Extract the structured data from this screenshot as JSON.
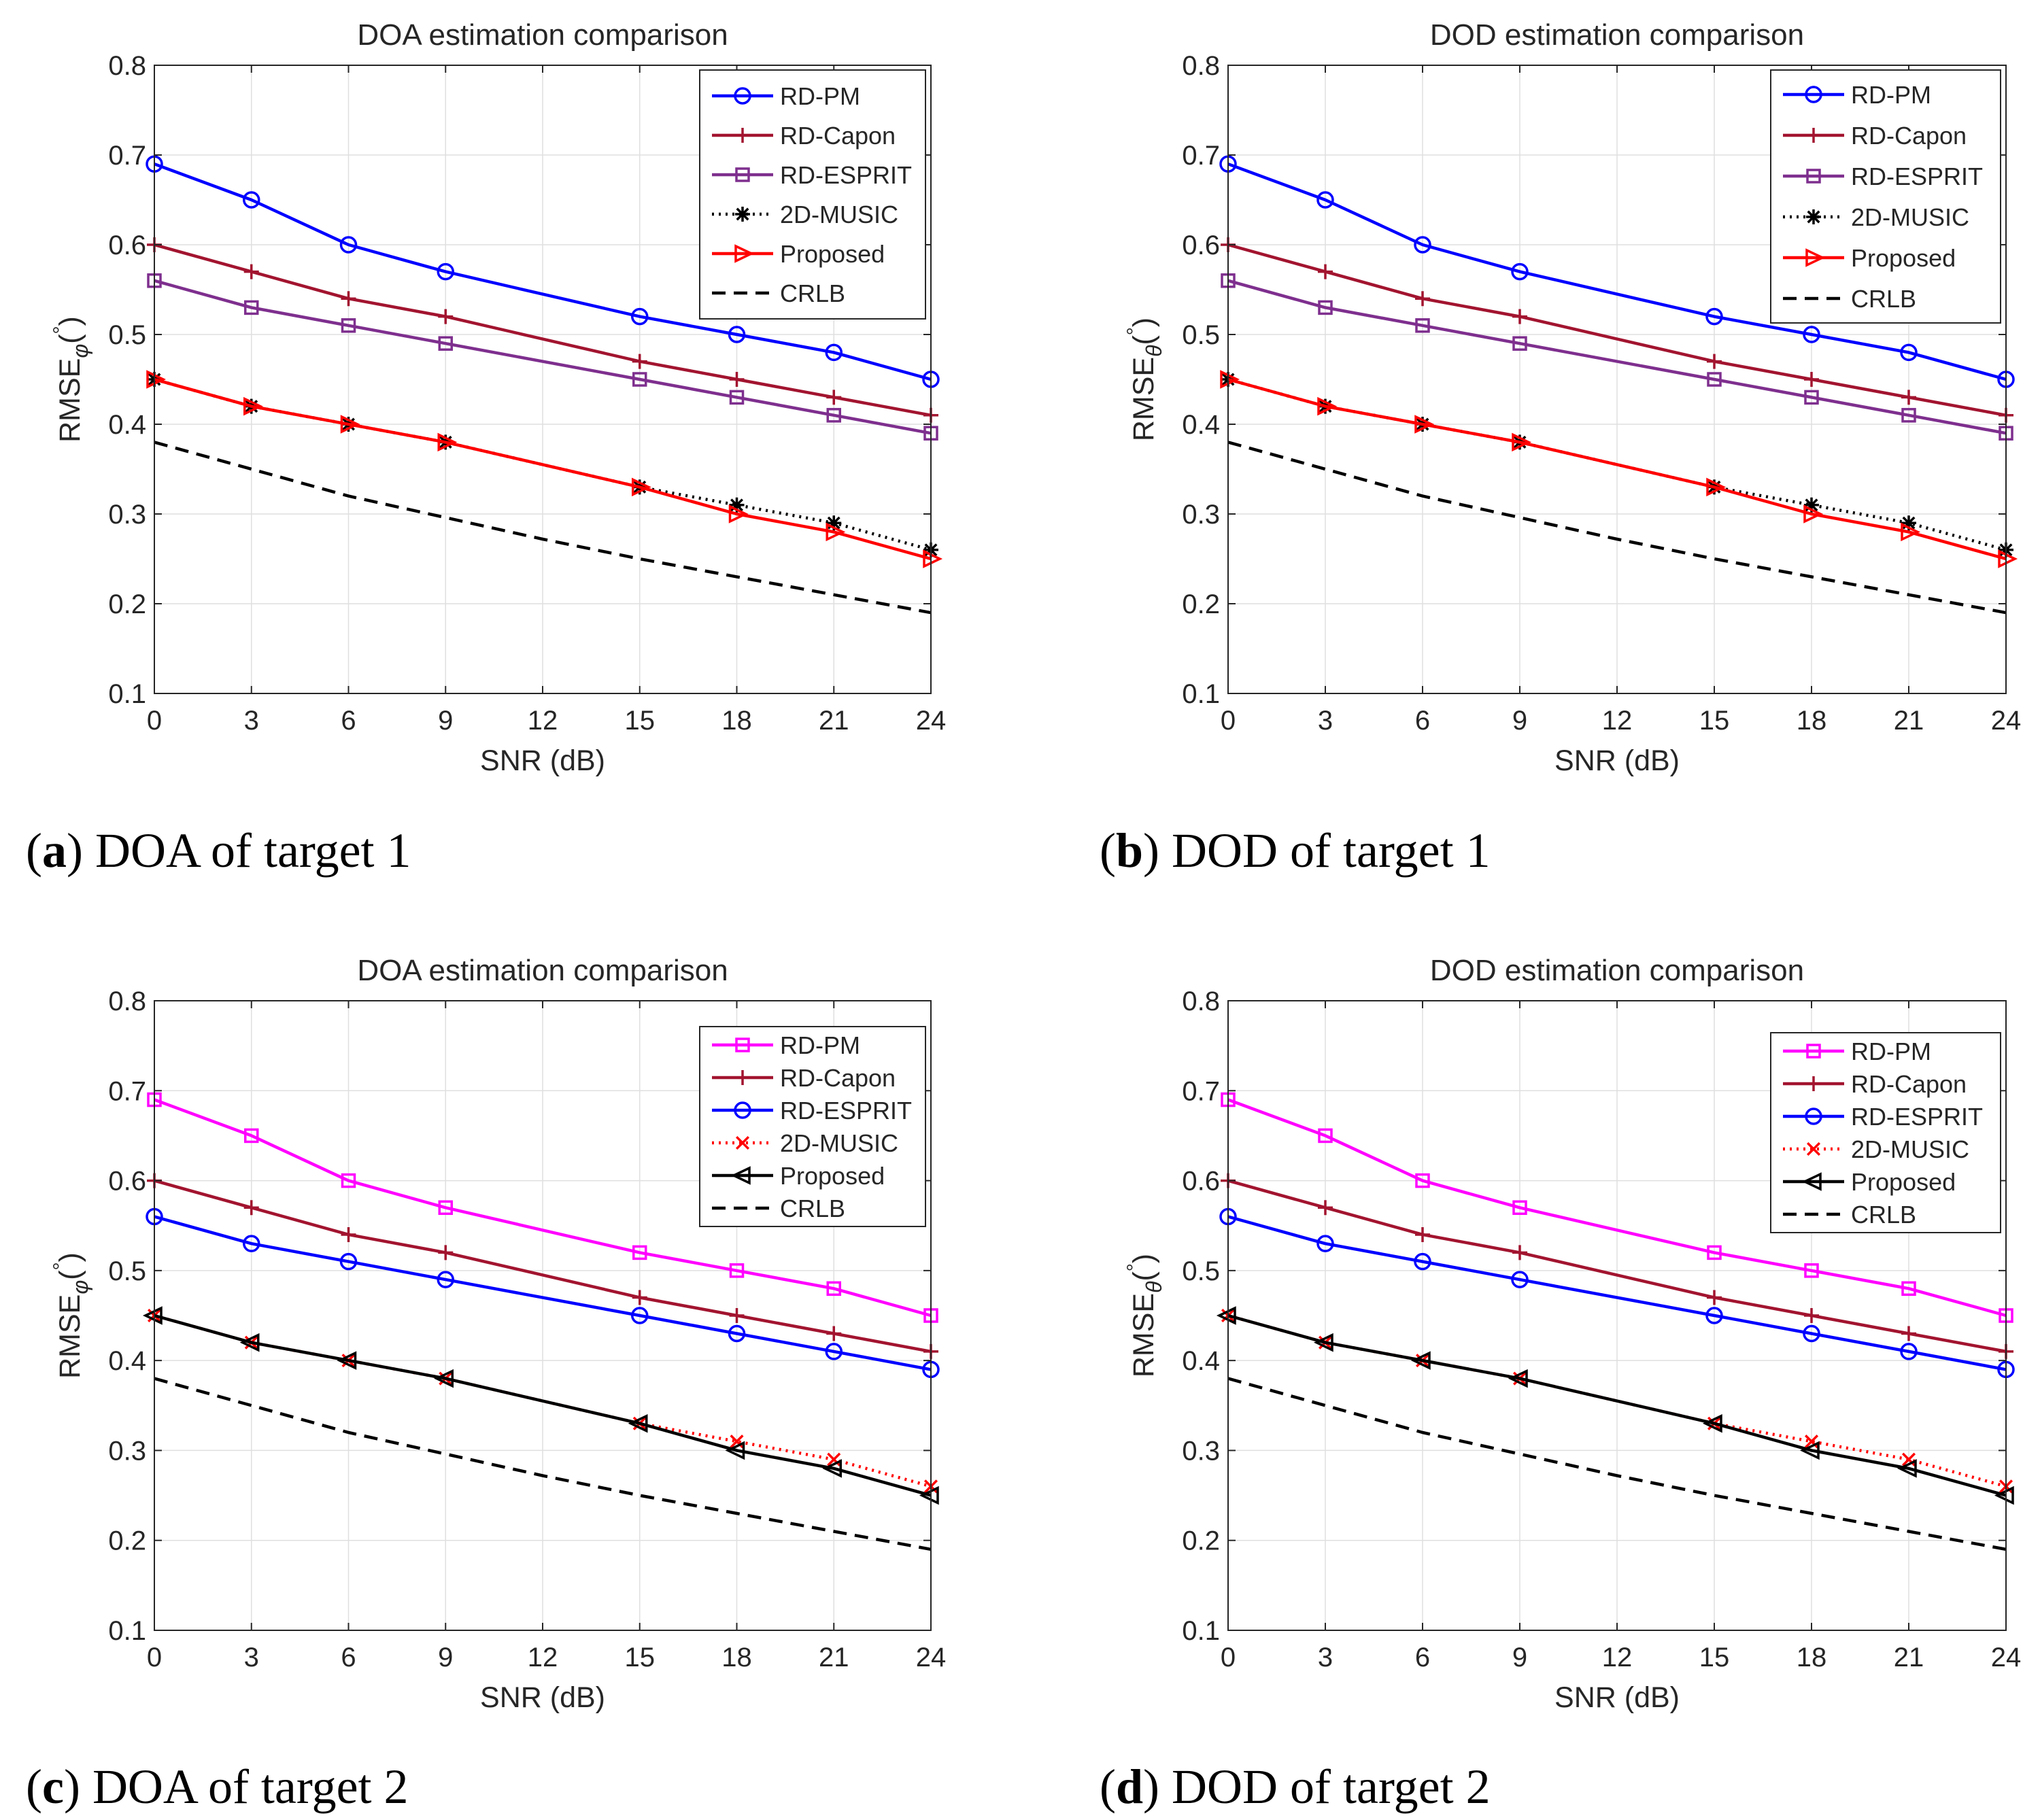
{
  "chart_data": [
    {
      "type": "line",
      "title": "DOA estimation comparison",
      "xlabel": "SNR (dB)",
      "ylabel_base": "RMSE",
      "ylabel_sub": "φ",
      "ylabel_sup": "°",
      "ylabel_paren_open": "(",
      "ylabel_paren_close": ")",
      "xlim": [
        0,
        24
      ],
      "ylim": [
        0.1,
        0.8
      ],
      "xticks": [
        0,
        3,
        6,
        9,
        12,
        15,
        18,
        21,
        24
      ],
      "xtick_labels": [
        "0",
        "3",
        "6",
        "9",
        "12",
        "15",
        "18",
        "21",
        "24"
      ],
      "yticks": [
        0.1,
        0.2,
        0.3,
        0.4,
        0.5,
        0.6,
        0.7,
        0.8
      ],
      "ytick_labels": [
        "0.1",
        "0.2",
        "0.3",
        "0.4",
        "0.5",
        "0.6",
        "0.7",
        "0.8"
      ],
      "grid": true,
      "legend_position": "top-right",
      "caption_letter": "a",
      "caption_text": "DOA of target 1",
      "caption_open": "(",
      "caption_close": ")",
      "series": [
        {
          "name": "RD-PM",
          "color": "#0000ff",
          "marker": "circle",
          "dash": "solid",
          "x": [
            0,
            3,
            6,
            9,
            15,
            18,
            21,
            24
          ],
          "values": [
            0.69,
            0.65,
            0.6,
            0.57,
            0.52,
            0.5,
            0.48,
            0.45
          ]
        },
        {
          "name": "RD-Capon",
          "color": "#a2142f",
          "marker": "plus",
          "dash": "solid",
          "x": [
            0,
            3,
            6,
            9,
            15,
            18,
            21,
            24
          ],
          "values": [
            0.6,
            0.57,
            0.54,
            0.52,
            0.47,
            0.45,
            0.43,
            0.41
          ]
        },
        {
          "name": "RD-ESPRIT",
          "color": "#7e2f8e",
          "marker": "square",
          "dash": "solid",
          "x": [
            0,
            3,
            6,
            9,
            15,
            18,
            21,
            24
          ],
          "values": [
            0.56,
            0.53,
            0.51,
            0.49,
            0.45,
            0.43,
            0.41,
            0.39
          ]
        },
        {
          "name": "2D-MUSIC",
          "color": "#000000",
          "marker": "asterisk",
          "dash": "dotted",
          "x": [
            0,
            3,
            6,
            9,
            15,
            18,
            21,
            24
          ],
          "values": [
            0.45,
            0.42,
            0.4,
            0.38,
            0.33,
            0.31,
            0.29,
            0.26
          ]
        },
        {
          "name": "Proposed",
          "color": "#ff0000",
          "marker": "triangle-right",
          "dash": "solid",
          "x": [
            0,
            3,
            6,
            9,
            15,
            18,
            21,
            24
          ],
          "values": [
            0.45,
            0.42,
            0.4,
            0.38,
            0.33,
            0.3,
            0.28,
            0.25
          ]
        },
        {
          "name": "CRLB",
          "color": "#000000",
          "marker": "none",
          "dash": "dashed",
          "x": [
            0,
            3,
            6,
            9,
            12,
            15,
            18,
            21,
            24
          ],
          "values": [
            0.38,
            0.35,
            0.32,
            0.296,
            0.272,
            0.25,
            0.23,
            0.21,
            0.19
          ]
        }
      ]
    },
    {
      "type": "line",
      "title": "DOD estimation comparison",
      "xlabel": "SNR (dB)",
      "ylabel_base": "RMSE",
      "ylabel_sub": "θ",
      "ylabel_sup": "°",
      "ylabel_paren_open": "(",
      "ylabel_paren_close": ")",
      "xlim": [
        0,
        24
      ],
      "ylim": [
        0.1,
        0.8
      ],
      "xticks": [
        0,
        3,
        6,
        9,
        12,
        15,
        18,
        21,
        24
      ],
      "xtick_labels": [
        "0",
        "3",
        "6",
        "9",
        "12",
        "15",
        "18",
        "21",
        "24"
      ],
      "yticks": [
        0.1,
        0.2,
        0.3,
        0.4,
        0.5,
        0.6,
        0.7,
        0.8
      ],
      "ytick_labels": [
        "0.1",
        "0.2",
        "0.3",
        "0.4",
        "0.5",
        "0.6",
        "0.7",
        "0.8"
      ],
      "grid": true,
      "legend_position": "top-right",
      "caption_letter": "b",
      "caption_text": "DOD of target 1",
      "caption_open": "(",
      "caption_close": ")",
      "series": [
        {
          "name": "RD-PM",
          "color": "#0000ff",
          "marker": "circle",
          "dash": "solid",
          "x": [
            0,
            3,
            6,
            9,
            15,
            18,
            21,
            24
          ],
          "values": [
            0.69,
            0.65,
            0.6,
            0.57,
            0.52,
            0.5,
            0.48,
            0.45
          ]
        },
        {
          "name": "RD-Capon",
          "color": "#a2142f",
          "marker": "plus",
          "dash": "solid",
          "x": [
            0,
            3,
            6,
            9,
            15,
            18,
            21,
            24
          ],
          "values": [
            0.6,
            0.57,
            0.54,
            0.52,
            0.47,
            0.45,
            0.43,
            0.41
          ]
        },
        {
          "name": "RD-ESPRIT",
          "color": "#7e2f8e",
          "marker": "square",
          "dash": "solid",
          "x": [
            0,
            3,
            6,
            9,
            15,
            18,
            21,
            24
          ],
          "values": [
            0.56,
            0.53,
            0.51,
            0.49,
            0.45,
            0.43,
            0.41,
            0.39
          ]
        },
        {
          "name": "2D-MUSIC",
          "color": "#000000",
          "marker": "asterisk",
          "dash": "dotted",
          "x": [
            0,
            3,
            6,
            9,
            15,
            18,
            21,
            24
          ],
          "values": [
            0.45,
            0.42,
            0.4,
            0.38,
            0.33,
            0.31,
            0.29,
            0.26
          ]
        },
        {
          "name": "Proposed",
          "color": "#ff0000",
          "marker": "triangle-right",
          "dash": "solid",
          "x": [
            0,
            3,
            6,
            9,
            15,
            18,
            21,
            24
          ],
          "values": [
            0.45,
            0.42,
            0.4,
            0.38,
            0.33,
            0.3,
            0.28,
            0.25
          ]
        },
        {
          "name": "CRLB",
          "color": "#000000",
          "marker": "none",
          "dash": "dashed",
          "x": [
            0,
            3,
            6,
            9,
            12,
            15,
            18,
            21,
            24
          ],
          "values": [
            0.38,
            0.35,
            0.32,
            0.296,
            0.272,
            0.25,
            0.23,
            0.21,
            0.19
          ]
        }
      ]
    },
    {
      "type": "line",
      "title": "DOA estimation comparison",
      "xlabel": "SNR (dB)",
      "ylabel_base": "RMSE",
      "ylabel_sub": "φ",
      "ylabel_sup": "°",
      "ylabel_paren_open": "(",
      "ylabel_paren_close": ")",
      "xlim": [
        0,
        24
      ],
      "ylim": [
        0.1,
        0.8
      ],
      "xticks": [
        0,
        3,
        6,
        9,
        12,
        15,
        18,
        21,
        24
      ],
      "xtick_labels": [
        "0",
        "3",
        "6",
        "9",
        "12",
        "15",
        "18",
        "21",
        "24"
      ],
      "yticks": [
        0.1,
        0.2,
        0.3,
        0.4,
        0.5,
        0.6,
        0.7,
        0.8
      ],
      "ytick_labels": [
        "0.1",
        "0.2",
        "0.3",
        "0.4",
        "0.5",
        "0.6",
        "0.7",
        "0.8"
      ],
      "grid": true,
      "legend_position": "top-right",
      "caption_letter": "c",
      "caption_text": "DOA of target 2",
      "caption_open": "(",
      "caption_close": ")",
      "series": [
        {
          "name": "RD-PM",
          "color": "#ff00ff",
          "marker": "square",
          "dash": "solid",
          "x": [
            0,
            3,
            6,
            9,
            15,
            18,
            21,
            24
          ],
          "values": [
            0.69,
            0.65,
            0.6,
            0.57,
            0.52,
            0.5,
            0.48,
            0.45
          ]
        },
        {
          "name": "RD-Capon",
          "color": "#a2142f",
          "marker": "plus",
          "dash": "solid",
          "x": [
            0,
            3,
            6,
            9,
            15,
            18,
            21,
            24
          ],
          "values": [
            0.6,
            0.57,
            0.54,
            0.52,
            0.47,
            0.45,
            0.43,
            0.41
          ]
        },
        {
          "name": "RD-ESPRIT",
          "color": "#0000ff",
          "marker": "circle",
          "dash": "solid",
          "x": [
            0,
            3,
            6,
            9,
            15,
            18,
            21,
            24
          ],
          "values": [
            0.56,
            0.53,
            0.51,
            0.49,
            0.45,
            0.43,
            0.41,
            0.39
          ]
        },
        {
          "name": "2D-MUSIC",
          "color": "#ff0000",
          "marker": "x",
          "dash": "dotted",
          "x": [
            0,
            3,
            6,
            9,
            15,
            18,
            21,
            24
          ],
          "values": [
            0.45,
            0.42,
            0.4,
            0.38,
            0.33,
            0.31,
            0.29,
            0.26
          ]
        },
        {
          "name": "Proposed",
          "color": "#000000",
          "marker": "triangle-left",
          "dash": "solid",
          "x": [
            0,
            3,
            6,
            9,
            15,
            18,
            21,
            24
          ],
          "values": [
            0.45,
            0.42,
            0.4,
            0.38,
            0.33,
            0.3,
            0.28,
            0.25
          ]
        },
        {
          "name": "CRLB",
          "color": "#000000",
          "marker": "none",
          "dash": "dashed",
          "x": [
            0,
            3,
            6,
            9,
            12,
            15,
            18,
            21,
            24
          ],
          "values": [
            0.38,
            0.35,
            0.32,
            0.296,
            0.272,
            0.25,
            0.23,
            0.21,
            0.19
          ]
        }
      ]
    },
    {
      "type": "line",
      "title": "DOD estimation comparison",
      "xlabel": "SNR (dB)",
      "ylabel_base": "RMSE",
      "ylabel_sub": "θ",
      "ylabel_sup": "°",
      "ylabel_paren_open": "(",
      "ylabel_paren_close": ")",
      "xlim": [
        0,
        24
      ],
      "ylim": [
        0.1,
        0.8
      ],
      "xticks": [
        0,
        3,
        6,
        9,
        12,
        15,
        18,
        21,
        24
      ],
      "xtick_labels": [
        "0",
        "3",
        "6",
        "9",
        "12",
        "15",
        "18",
        "21",
        "24"
      ],
      "yticks": [
        0.1,
        0.2,
        0.3,
        0.4,
        0.5,
        0.6,
        0.7,
        0.8
      ],
      "ytick_labels": [
        "0.1",
        "0.2",
        "0.3",
        "0.4",
        "0.5",
        "0.6",
        "0.7",
        "0.8"
      ],
      "grid": true,
      "legend_position": "top-right",
      "caption_letter": "d",
      "caption_text": "DOD of target 2",
      "caption_open": "(",
      "caption_close": ")",
      "series": [
        {
          "name": "RD-PM",
          "color": "#ff00ff",
          "marker": "square",
          "dash": "solid",
          "x": [
            0,
            3,
            6,
            9,
            15,
            18,
            21,
            24
          ],
          "values": [
            0.69,
            0.65,
            0.6,
            0.57,
            0.52,
            0.5,
            0.48,
            0.45
          ]
        },
        {
          "name": "RD-Capon",
          "color": "#a2142f",
          "marker": "plus",
          "dash": "solid",
          "x": [
            0,
            3,
            6,
            9,
            15,
            18,
            21,
            24
          ],
          "values": [
            0.6,
            0.57,
            0.54,
            0.52,
            0.47,
            0.45,
            0.43,
            0.41
          ]
        },
        {
          "name": "RD-ESPRIT",
          "color": "#0000ff",
          "marker": "circle",
          "dash": "solid",
          "x": [
            0,
            3,
            6,
            9,
            15,
            18,
            21,
            24
          ],
          "values": [
            0.56,
            0.53,
            0.51,
            0.49,
            0.45,
            0.43,
            0.41,
            0.39
          ]
        },
        {
          "name": "2D-MUSIC",
          "color": "#ff0000",
          "marker": "x",
          "dash": "dotted",
          "x": [
            0,
            3,
            6,
            9,
            15,
            18,
            21,
            24
          ],
          "values": [
            0.45,
            0.42,
            0.4,
            0.38,
            0.33,
            0.31,
            0.29,
            0.26
          ]
        },
        {
          "name": "Proposed",
          "color": "#000000",
          "marker": "triangle-left",
          "dash": "solid",
          "x": [
            0,
            3,
            6,
            9,
            15,
            18,
            21,
            24
          ],
          "values": [
            0.45,
            0.42,
            0.4,
            0.38,
            0.33,
            0.3,
            0.28,
            0.25
          ]
        },
        {
          "name": "CRLB",
          "color": "#000000",
          "marker": "none",
          "dash": "dashed",
          "x": [
            0,
            3,
            6,
            9,
            12,
            15,
            18,
            21,
            24
          ],
          "values": [
            0.38,
            0.35,
            0.32,
            0.296,
            0.272,
            0.25,
            0.23,
            0.21,
            0.19
          ]
        }
      ]
    }
  ]
}
